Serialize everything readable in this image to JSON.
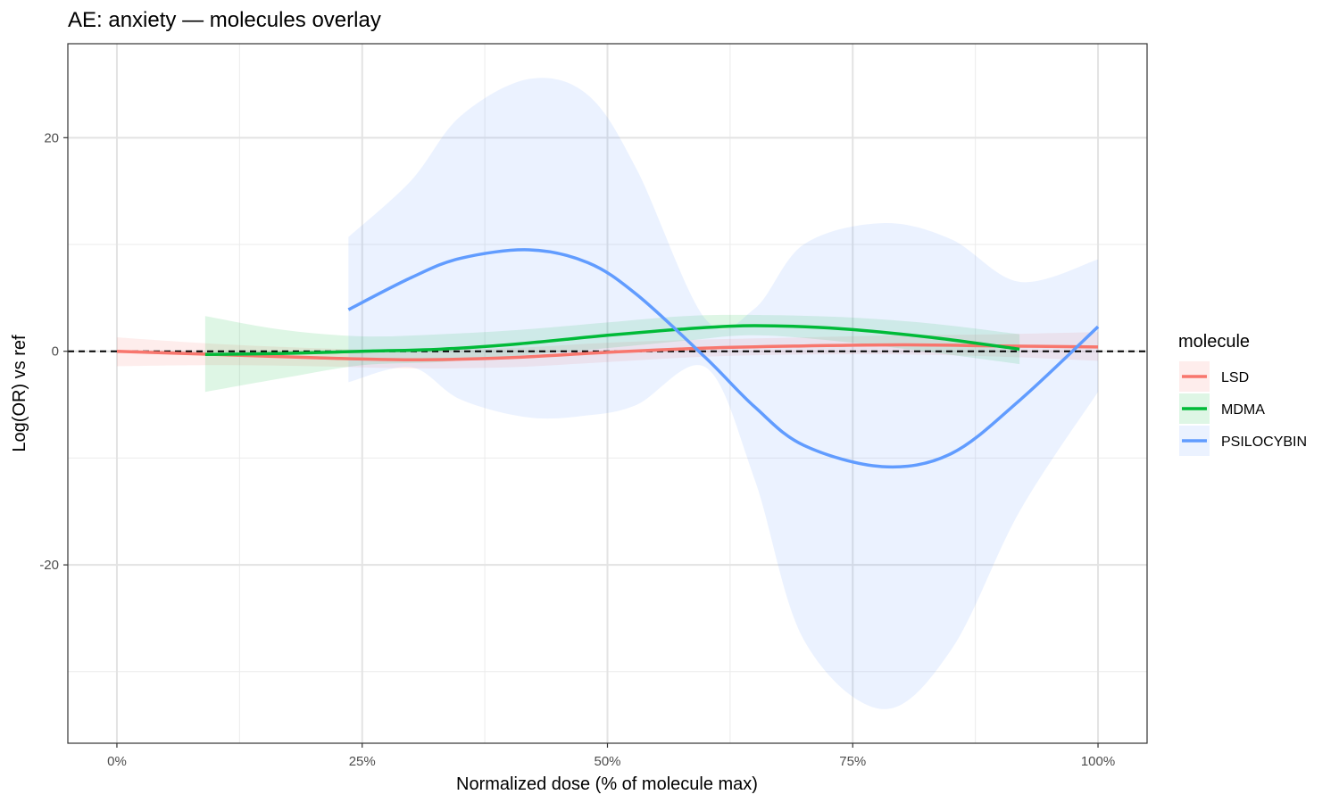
{
  "chart_data": {
    "type": "line",
    "title": "AE: anxiety — molecules overlay",
    "xlabel": "Normalized dose (% of molecule max)",
    "ylabel": "Log(OR) vs ref",
    "xlim": [
      -0.05,
      1.05
    ],
    "ylim": [
      -36.7,
      28.8
    ],
    "x_ticks": [
      0,
      0.25,
      0.5,
      0.75,
      1.0
    ],
    "x_tick_labels": [
      "0%",
      "25%",
      "50%",
      "75%",
      "100%"
    ],
    "y_ticks": [
      -20,
      0,
      20
    ],
    "y_tick_labels": [
      "-20",
      "0",
      "20"
    ],
    "grid": true,
    "reference_line": {
      "y": 0,
      "style": "dashed"
    },
    "legend": {
      "title": "molecule",
      "position": "right"
    },
    "series": [
      {
        "name": "LSD",
        "color": "#F8766D",
        "fill": "#F8766D",
        "x": [
          0.0,
          0.1,
          0.2,
          0.3,
          0.4,
          0.5,
          0.6,
          0.7,
          0.8,
          0.9,
          1.0
        ],
        "y": [
          0.0,
          -0.3,
          -0.6,
          -0.8,
          -0.6,
          -0.1,
          0.3,
          0.5,
          0.6,
          0.5,
          0.4
        ],
        "lower": [
          -1.4,
          -1.3,
          -1.4,
          -1.6,
          -1.5,
          -1.0,
          -0.5,
          -0.3,
          -0.3,
          -0.5,
          -0.9
        ],
        "upper": [
          1.3,
          0.7,
          0.3,
          0.1,
          0.3,
          0.8,
          1.1,
          1.3,
          1.5,
          1.6,
          1.8
        ]
      },
      {
        "name": "MDMA",
        "color": "#00BA38",
        "fill": "#00BA38",
        "x": [
          0.09,
          0.17,
          0.25,
          0.33,
          0.41,
          0.5,
          0.58,
          0.65,
          0.74,
          0.83,
          0.92
        ],
        "y": [
          -0.3,
          -0.2,
          0.0,
          0.2,
          0.7,
          1.5,
          2.1,
          2.4,
          2.1,
          1.3,
          0.2
        ],
        "lower": [
          -3.8,
          -2.5,
          -1.3,
          -1.0,
          -0.4,
          0.3,
          1.0,
          1.5,
          0.9,
          -0.1,
          -1.2
        ],
        "upper": [
          3.3,
          2.0,
          1.4,
          1.6,
          2.0,
          2.7,
          3.3,
          3.4,
          3.2,
          2.6,
          1.6
        ]
      },
      {
        "name": "PSILOCYBIN",
        "color": "#619CFF",
        "fill": "#619CFF",
        "x": [
          0.236,
          0.3,
          0.35,
          0.42,
          0.48,
          0.53,
          0.6,
          0.65,
          0.7,
          0.78,
          0.85,
          0.92,
          1.0
        ],
        "y": [
          3.9,
          6.9,
          8.7,
          9.5,
          8.3,
          5.3,
          -0.6,
          -5.2,
          -8.8,
          -10.8,
          -9.6,
          -4.6,
          2.3
        ],
        "lower": [
          -2.9,
          -1.5,
          -4.5,
          -6.2,
          -6.0,
          -5.0,
          -1.5,
          -12.0,
          -27.0,
          -33.5,
          -28.0,
          -15.0,
          -3.8
        ],
        "upper": [
          10.7,
          16.0,
          22.0,
          25.5,
          24.0,
          17.0,
          3.0,
          4.0,
          10.0,
          12.0,
          10.5,
          6.5,
          8.6
        ]
      }
    ]
  }
}
